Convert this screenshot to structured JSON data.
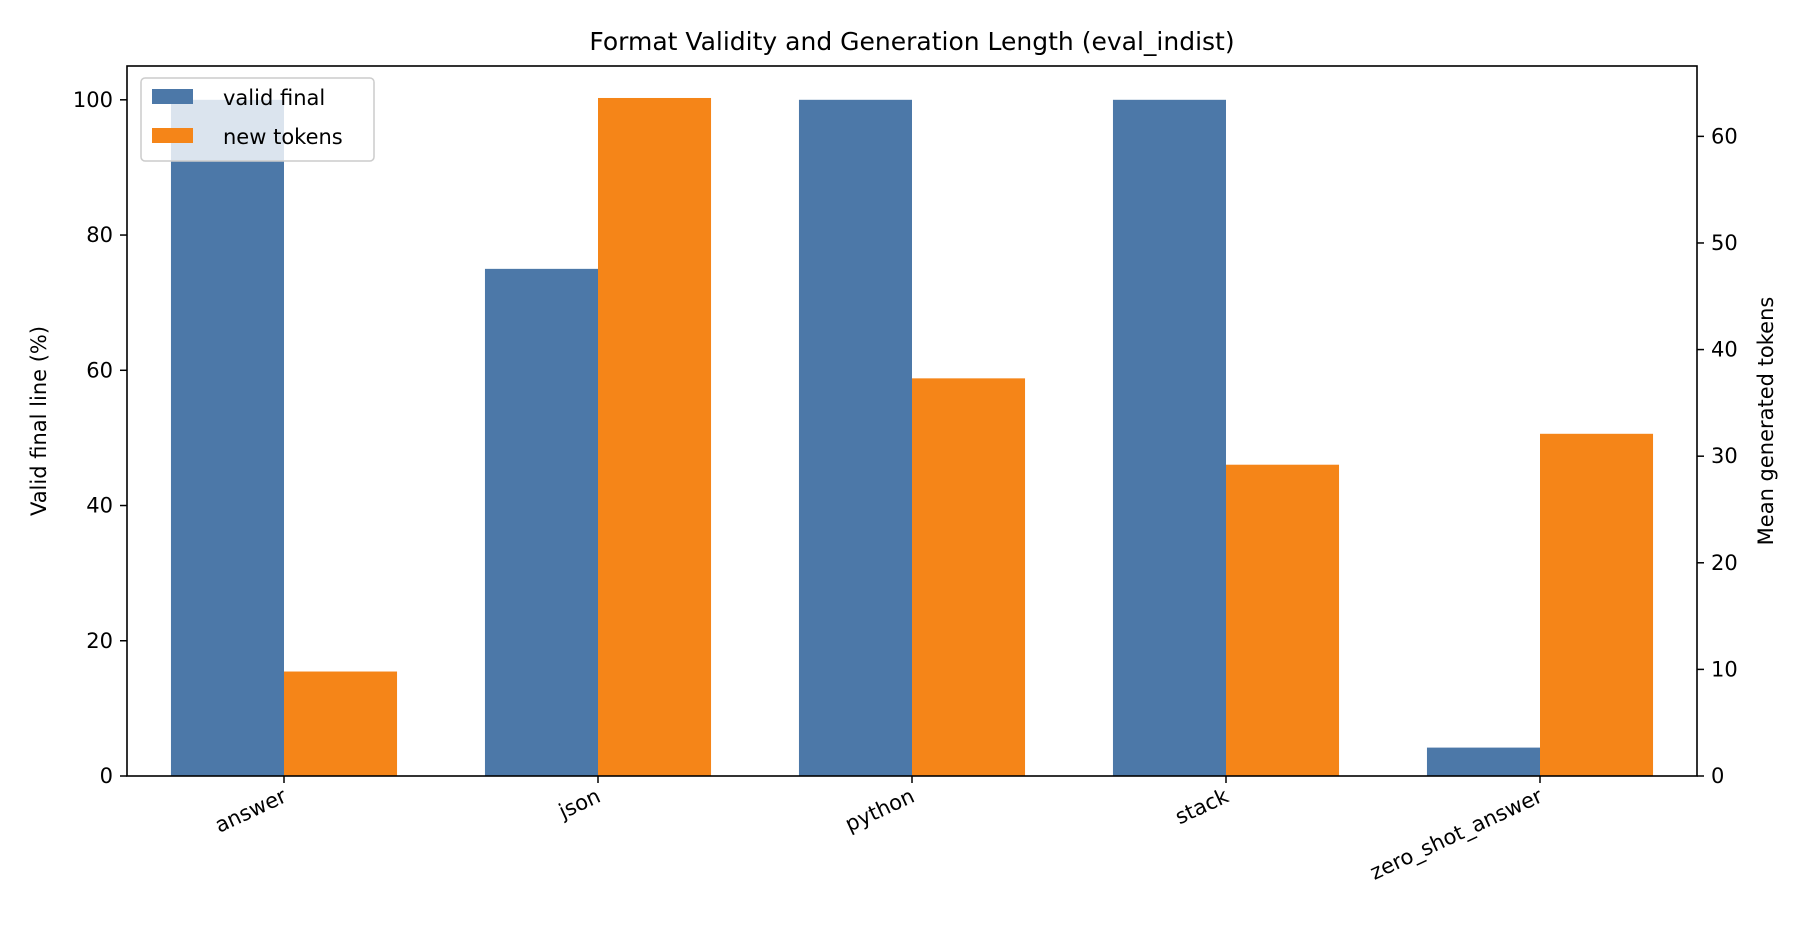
{
  "chart_data": {
    "type": "bar",
    "title": "Format Validity and Generation Length (eval_indist)",
    "categories": [
      "answer",
      "json",
      "python",
      "stack",
      "zero_shot_answer"
    ],
    "series": [
      {
        "name": "valid final",
        "axis": "left",
        "color": "#4c78a8",
        "values": [
          100,
          75,
          100,
          100,
          4.2
        ]
      },
      {
        "name": "new tokens",
        "axis": "right",
        "color": "#f58518",
        "values": [
          9.8,
          63.6,
          37.3,
          29.2,
          32.1
        ]
      }
    ],
    "ylabel_left": "Valid final line (%)",
    "ylabel_right": "Mean generated tokens",
    "ylim_left": [
      0,
      105
    ],
    "ylim_right": [
      0,
      66.6
    ],
    "yticks_left": [
      0,
      20,
      40,
      60,
      80,
      100
    ],
    "yticks_right": [
      0,
      10,
      20,
      30,
      40,
      50,
      60
    ],
    "grid": false,
    "legend_position": "upper-left"
  }
}
